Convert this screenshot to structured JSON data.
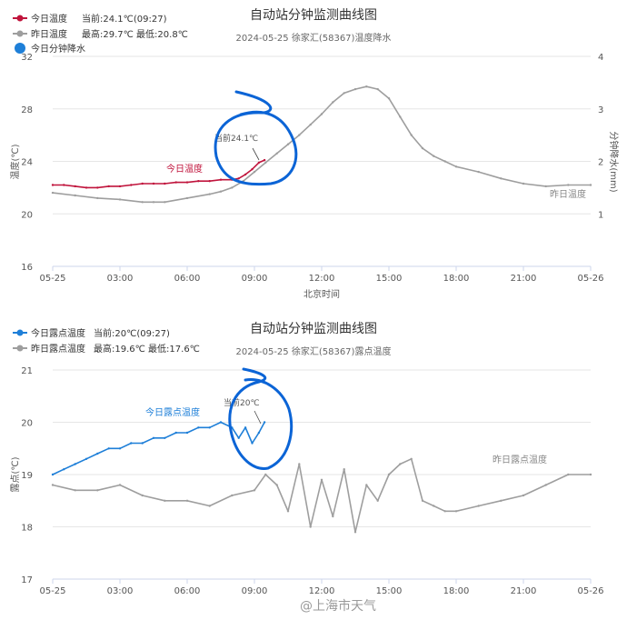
{
  "charts": [
    {
      "title": "自动站分钟监测曲线图",
      "subtitle": "2024-05-25 徐家汇(58367)温度降水",
      "legend": [
        {
          "label": "今日温度",
          "detail": "当前:24.1℃(09:27)",
          "color": "#c0143c"
        },
        {
          "label": "昨日温度",
          "detail": "最高:29.7℃ 最低:20.8℃",
          "color": "#9e9e9e"
        },
        {
          "label": "今日分钟降水",
          "detail": "",
          "color": "#1e7fd8"
        }
      ],
      "ylabel_left": "温度(℃)",
      "ylabel_right": "分钟降水(mm)",
      "xlabel": "北京时间",
      "annotation": "当前24.1℃",
      "series_labels": {
        "today": "今日温度",
        "yesterday": "昨日温度"
      }
    },
    {
      "title": "自动站分钟监测曲线图",
      "subtitle": "2024-05-25 徐家汇(58367)露点温度",
      "legend": [
        {
          "label": "今日露点温度",
          "detail": "当前:20℃(09:27)",
          "color": "#1e7fd8"
        },
        {
          "label": "昨日露点温度",
          "detail": "最高:19.6℃ 最低:17.6℃",
          "color": "#9e9e9e"
        }
      ],
      "ylabel_left": "露点(℃)",
      "annotation": "当前20℃",
      "series_labels": {
        "today": "今日露点温度",
        "yesterday": "昨日露点温度"
      }
    }
  ],
  "watermark": "@上海市天气",
  "chart_data": [
    {
      "type": "line",
      "title": "自动站分钟监测曲线图",
      "subtitle": "2024-05-25 徐家汇(58367)温度降水",
      "xlabel": "北京时间",
      "ylabel": "温度(℃)",
      "y2label": "分钟降水(mm)",
      "x_ticks": [
        "05-25",
        "03:00",
        "06:00",
        "09:00",
        "12:00",
        "15:00",
        "18:00",
        "21:00",
        "05-26"
      ],
      "xlim": [
        0,
        24
      ],
      "ylim": [
        16,
        32
      ],
      "y_ticks": [
        16,
        20,
        24,
        28,
        32
      ],
      "y2lim": [
        0,
        4
      ],
      "y2_ticks": [
        1,
        2,
        3,
        4
      ],
      "grid": "horizontal",
      "legend_position": "top-left",
      "series": [
        {
          "name": "今日温度",
          "color": "#c0143c",
          "x": [
            0,
            0.5,
            1,
            1.5,
            2,
            2.5,
            3,
            3.5,
            4,
            4.5,
            5,
            5.5,
            6,
            6.5,
            7,
            7.5,
            8,
            8.3,
            8.6,
            8.9,
            9.2,
            9.45
          ],
          "y": [
            22.2,
            22.2,
            22.1,
            22.0,
            22.0,
            22.1,
            22.1,
            22.2,
            22.3,
            22.3,
            22.3,
            22.4,
            22.4,
            22.5,
            22.5,
            22.6,
            22.6,
            22.7,
            23.0,
            23.4,
            23.9,
            24.1
          ]
        },
        {
          "name": "昨日温度",
          "color": "#9e9e9e",
          "x": [
            0,
            1,
            2,
            3,
            4,
            4.5,
            5,
            6,
            7,
            7.5,
            8,
            8.5,
            9,
            9.5,
            10,
            10.5,
            11,
            11.5,
            12,
            12.5,
            13,
            13.5,
            14,
            14.5,
            15,
            15.5,
            16,
            16.5,
            17,
            17.5,
            18,
            19,
            20,
            21,
            22,
            23,
            24
          ],
          "y": [
            21.6,
            21.4,
            21.2,
            21.1,
            20.9,
            20.9,
            20.9,
            21.2,
            21.5,
            21.7,
            22.0,
            22.5,
            23.2,
            23.9,
            24.6,
            25.3,
            26.0,
            26.8,
            27.6,
            28.5,
            29.2,
            29.5,
            29.7,
            29.5,
            28.8,
            27.4,
            26.0,
            25.0,
            24.4,
            24.0,
            23.6,
            23.2,
            22.7,
            22.3,
            22.1,
            22.2,
            22.2
          ]
        }
      ]
    },
    {
      "type": "line",
      "title": "自动站分钟监测曲线图",
      "subtitle": "2024-05-25 徐家汇(58367)露点温度",
      "ylabel": "露点(℃)",
      "x_ticks": [
        "05-25",
        "03:00",
        "06:00",
        "09:00",
        "12:00",
        "15:00",
        "18:00",
        "21:00",
        "05-26"
      ],
      "xlim": [
        0,
        24
      ],
      "ylim": [
        17,
        21
      ],
      "y_ticks": [
        17,
        18,
        19,
        20,
        21
      ],
      "grid": "horizontal",
      "legend_position": "top-left",
      "series": [
        {
          "name": "今日露点温度",
          "color": "#1e7fd8",
          "x": [
            0,
            0.5,
            1,
            1.5,
            2,
            2.5,
            3,
            3.5,
            4,
            4.5,
            5,
            5.5,
            6,
            6.5,
            7,
            7.5,
            8,
            8.3,
            8.6,
            8.9,
            9.2,
            9.45
          ],
          "y": [
            19.0,
            19.1,
            19.2,
            19.3,
            19.4,
            19.5,
            19.5,
            19.6,
            19.6,
            19.7,
            19.7,
            19.8,
            19.8,
            19.9,
            19.9,
            20.0,
            19.9,
            19.7,
            19.9,
            19.6,
            19.8,
            20.0
          ]
        },
        {
          "name": "昨日露点温度",
          "color": "#9e9e9e",
          "x": [
            0,
            1,
            2,
            3,
            4,
            5,
            6,
            7,
            8,
            9,
            9.5,
            10,
            10.5,
            11,
            11.5,
            12,
            12.5,
            13,
            13.5,
            14,
            14.5,
            15,
            15.5,
            16,
            16.5,
            17,
            17.5,
            18,
            19,
            20,
            21,
            22,
            23,
            24
          ],
          "y": [
            18.8,
            18.7,
            18.7,
            18.8,
            18.6,
            18.5,
            18.5,
            18.4,
            18.6,
            18.7,
            19.0,
            18.8,
            18.3,
            19.2,
            18.0,
            18.9,
            18.2,
            19.1,
            17.9,
            18.8,
            18.5,
            19.0,
            19.2,
            19.3,
            18.5,
            18.4,
            18.3,
            18.3,
            18.4,
            18.5,
            18.6,
            18.8,
            19.0,
            19.0
          ]
        }
      ]
    }
  ]
}
